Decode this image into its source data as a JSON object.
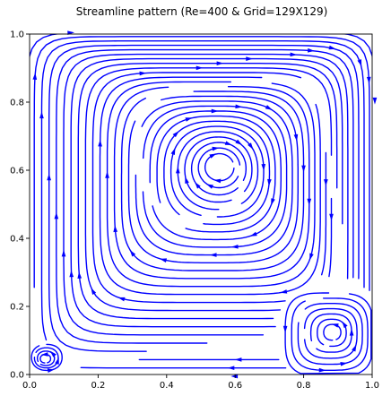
{
  "chart_data": {
    "type": "streamline",
    "title": "Streamline pattern (Re=400 & Grid=129X129)",
    "xlabel": "",
    "ylabel": "",
    "xlim": [
      0.0,
      1.0
    ],
    "ylim": [
      0.0,
      1.0
    ],
    "x_ticks": [
      "0.0",
      "0.2",
      "0.4",
      "0.6",
      "0.8",
      "1.0"
    ],
    "y_ticks": [
      "0.0",
      "0.2",
      "0.4",
      "0.6",
      "0.8",
      "1.0"
    ],
    "grid": false,
    "color": "#0000ff",
    "vortices": [
      {
        "name": "primary",
        "center": [
          0.555,
          0.61
        ],
        "direction": "clockwise"
      },
      {
        "name": "bottom-right",
        "center": [
          0.885,
          0.125
        ],
        "direction": "counterclockwise"
      },
      {
        "name": "bottom-left",
        "center": [
          0.045,
          0.045
        ],
        "direction": "counterclockwise"
      }
    ]
  }
}
